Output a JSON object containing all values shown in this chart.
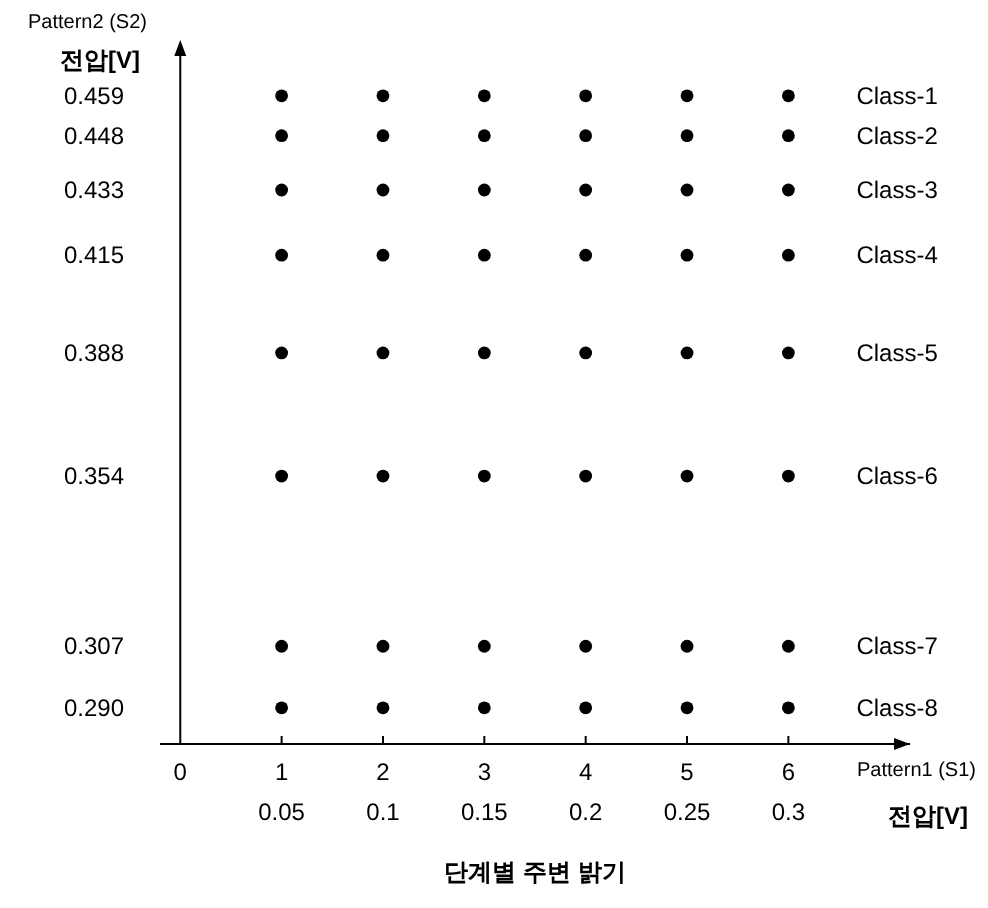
{
  "chart_data": {
    "type": "scatter",
    "xlabel": "단계별 주변 밝기",
    "ylabel": "전압[V]",
    "annotations": [
      "Pattern2 (S2)",
      "Pattern1 (S1)"
    ],
    "x2label": "전압[V]",
    "x2lim": [
      -0.01,
      0.36
    ],
    "x2ticks": [
      0.05,
      0.1,
      0.15,
      0.2,
      0.25,
      0.3
    ],
    "x": [
      1,
      2,
      3,
      4,
      5,
      6
    ],
    "xlim": [
      -0.2,
      7.2
    ],
    "xticks": [
      0,
      1,
      2,
      3,
      4,
      5,
      6
    ],
    "ylim": [
      0.28,
      0.47
    ],
    "yticks": [
      {
        "value": 0.459,
        "label": "0.459"
      },
      {
        "value": 0.448,
        "label": "0.448"
      },
      {
        "value": 0.433,
        "label": "0.433"
      },
      {
        "value": 0.415,
        "label": "0.415"
      },
      {
        "value": 0.388,
        "label": "0.388"
      },
      {
        "value": 0.354,
        "label": "0.354"
      },
      {
        "value": 0.307,
        "label": "0.307"
      },
      {
        "value": 0.29,
        "label": "0.290"
      }
    ],
    "series": [
      {
        "name": "Class-1",
        "color": "#000000",
        "values": [
          0.459,
          0.459,
          0.459,
          0.459,
          0.459,
          0.459
        ]
      },
      {
        "name": "Class-2",
        "color": "#000000",
        "values": [
          0.448,
          0.448,
          0.448,
          0.448,
          0.448,
          0.448
        ]
      },
      {
        "name": "Class-3",
        "color": "#000000",
        "values": [
          0.433,
          0.433,
          0.433,
          0.433,
          0.433,
          0.433
        ]
      },
      {
        "name": "Class-4",
        "color": "#000000",
        "values": [
          0.415,
          0.415,
          0.415,
          0.415,
          0.415,
          0.415
        ]
      },
      {
        "name": "Class-5",
        "color": "#000000",
        "values": [
          0.388,
          0.388,
          0.388,
          0.388,
          0.388,
          0.388
        ]
      },
      {
        "name": "Class-6",
        "color": "#000000",
        "values": [
          0.354,
          0.354,
          0.354,
          0.354,
          0.354,
          0.354
        ]
      },
      {
        "name": "Class-7",
        "color": "#000000",
        "values": [
          0.307,
          0.307,
          0.307,
          0.307,
          0.307,
          0.307
        ]
      },
      {
        "name": "Class-8",
        "color": "#000000",
        "values": [
          0.29,
          0.29,
          0.29,
          0.29,
          0.29,
          0.29
        ]
      }
    ],
    "marker": "circle",
    "grid": false,
    "legend": false
  }
}
